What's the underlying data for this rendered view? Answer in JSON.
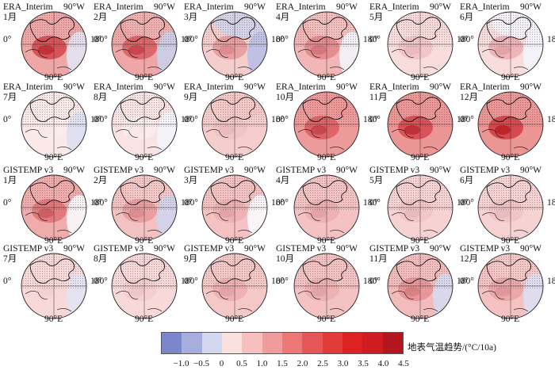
{
  "rows": [
    {
      "source": "ERA_Interim",
      "months": [
        {
          "label": "1月",
          "level": 0.8,
          "north": 0.0,
          "hot": 0.9,
          "cool": 0.25
        },
        {
          "label": "2月",
          "level": 0.8,
          "north": 0.1,
          "hot": 0.8,
          "cool": 0.45
        },
        {
          "label": "3月",
          "level": 0.45,
          "north": -0.4,
          "hot": 0.5,
          "cool": 0.6
        },
        {
          "label": "4月",
          "level": 0.65,
          "north": 0.1,
          "hot": 0.6,
          "cool": 0.1
        },
        {
          "label": "5月",
          "level": 0.3,
          "north": 0.2,
          "hot": 0.3,
          "cool": 0.0
        },
        {
          "label": "6月",
          "level": 0.3,
          "north": -0.1,
          "hot": 0.4,
          "cool": 0.1
        }
      ]
    },
    {
      "source": "ERA_Interim",
      "months": [
        {
          "label": "7月",
          "level": 0.2,
          "north": 0.0,
          "hot": 0.1,
          "cool": 0.3
        },
        {
          "label": "8月",
          "level": 0.25,
          "north": 0.0,
          "hot": 0.1,
          "cool": 0.1
        },
        {
          "label": "9月",
          "level": 0.45,
          "north": 0.3,
          "hot": 0.3,
          "cool": 0.0
        },
        {
          "label": "10月",
          "level": 0.9,
          "north": 0.4,
          "hot": 0.8,
          "cool": 0.0
        },
        {
          "label": "11月",
          "level": 0.95,
          "north": 0.3,
          "hot": 0.9,
          "cool": 0.0
        },
        {
          "label": "12月",
          "level": 0.95,
          "north": 0.3,
          "hot": 0.95,
          "cool": 0.0
        }
      ]
    },
    {
      "source": "GISTEMP v3",
      "months": [
        {
          "label": "1月",
          "level": 0.75,
          "north": 0.3,
          "hot": 0.7,
          "cool": 0.05
        },
        {
          "label": "2月",
          "level": 0.55,
          "north": 0.1,
          "hot": 0.5,
          "cool": 0.4
        },
        {
          "label": "3月",
          "level": 0.55,
          "north": 0.0,
          "hot": 0.4,
          "cool": 0.05
        },
        {
          "label": "4月",
          "level": 0.55,
          "north": 0.0,
          "hot": 0.4,
          "cool": 0.0
        },
        {
          "label": "5月",
          "level": 0.4,
          "north": 0.0,
          "hot": 0.3,
          "cool": 0.0
        },
        {
          "label": "6月",
          "level": 0.4,
          "north": 0.0,
          "hot": 0.3,
          "cool": 0.0
        }
      ]
    },
    {
      "source": "GISTEMP v3",
      "months": [
        {
          "label": "7月",
          "level": 0.35,
          "north": 0.0,
          "hot": 0.2,
          "cool": 0.25
        },
        {
          "label": "8月",
          "level": 0.35,
          "north": 0.0,
          "hot": 0.25,
          "cool": 0.0
        },
        {
          "label": "9月",
          "level": 0.5,
          "north": 0.0,
          "hot": 0.4,
          "cool": 0.0
        },
        {
          "label": "10月",
          "level": 0.55,
          "north": 0.0,
          "hot": 0.4,
          "cool": 0.0
        },
        {
          "label": "11月",
          "level": 0.6,
          "north": 0.2,
          "hot": 0.55,
          "cool": 0.35
        },
        {
          "label": "12月",
          "level": 0.55,
          "north": 0.1,
          "hot": 0.45,
          "cool": 0.3
        }
      ]
    }
  ],
  "axis_labels": {
    "north": "90°W",
    "east": "90°E",
    "west": "0°",
    "far": "180°"
  },
  "legend": {
    "title": "地表气温趋势/(°C/10a)",
    "ticks": [
      "−1.0",
      "−0.5",
      "0",
      "0.5",
      "1.0",
      "1.5",
      "2.0",
      "2.5",
      "3.0",
      "3.5",
      "4.0",
      "4.5"
    ],
    "colors": [
      "#7b86cb",
      "#a7aedd",
      "#d3d7ef",
      "#fbe0e0",
      "#f6c0c0",
      "#f19c9c",
      "#ec7878",
      "#e75656",
      "#e33a3a",
      "#de2222",
      "#cf1b22",
      "#b4161e"
    ]
  }
}
